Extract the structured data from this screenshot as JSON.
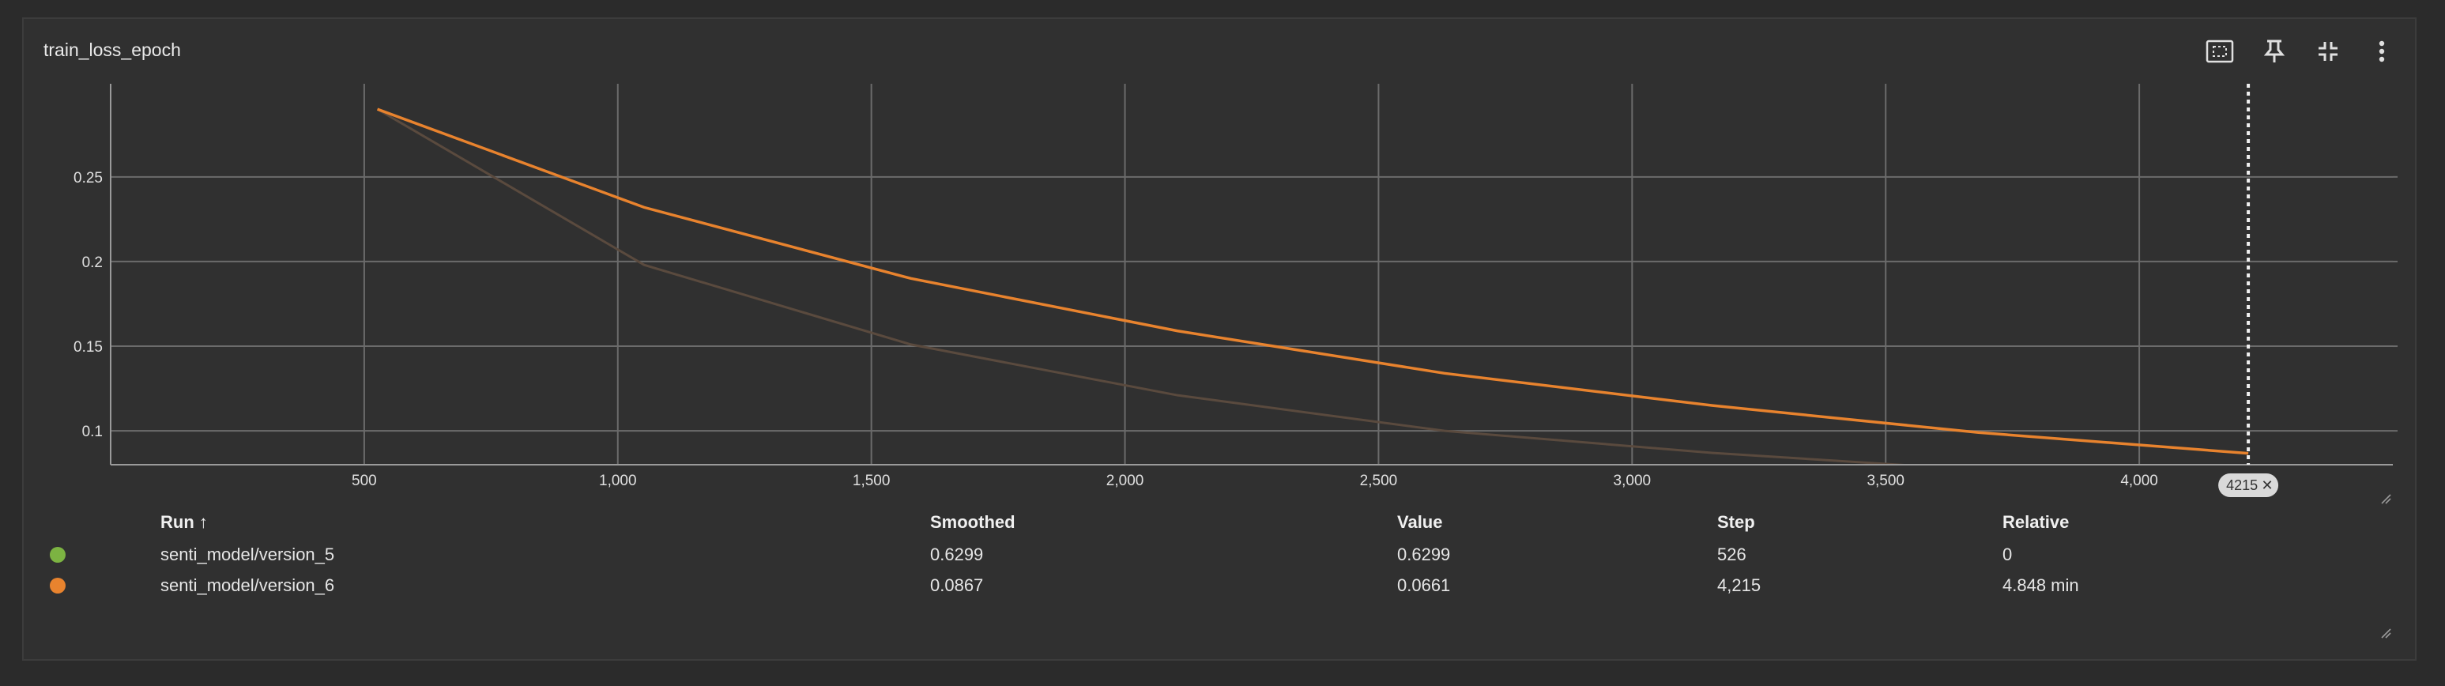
{
  "card": {
    "title": "train_loss_epoch"
  },
  "toolbar": {
    "icons": [
      "fit-to-data-icon",
      "pin-icon",
      "collapse-icon",
      "more-vert-icon"
    ]
  },
  "chart_data": {
    "type": "line",
    "title": "train_loss_epoch",
    "xlabel": "",
    "ylabel": "",
    "xlim": [
      0,
      4500
    ],
    "ylim": [
      0.08,
      0.305
    ],
    "x_ticks": [
      "500",
      "1,000",
      "1,500",
      "2,000",
      "2,500",
      "3,000",
      "3,500",
      "4,000"
    ],
    "x_tick_values": [
      500,
      1000,
      1500,
      2000,
      2500,
      3000,
      3500,
      4000
    ],
    "y_ticks": [
      "0.1",
      "0.15",
      "0.2",
      "0.25"
    ],
    "y_tick_values": [
      0.1,
      0.15,
      0.2,
      0.25
    ],
    "grid": true,
    "hover_step": 4215,
    "hover_label": "4215",
    "series": [
      {
        "name": "senti_model/version_6",
        "color": "#e8832e",
        "role": "smoothed",
        "x": [
          526,
          1052,
          1578,
          2104,
          2630,
          3157,
          3683,
          4215
        ],
        "y": [
          0.29,
          0.232,
          0.19,
          0.159,
          0.134,
          0.115,
          0.099,
          0.0867
        ]
      },
      {
        "name": "senti_model/version_6",
        "color": "#5a4a3e",
        "role": "raw",
        "x": [
          526,
          1052,
          1578,
          2104,
          2630,
          3157,
          3683,
          4215
        ],
        "y": [
          0.29,
          0.198,
          0.151,
          0.121,
          0.1,
          0.087,
          0.077,
          0.0661
        ]
      }
    ]
  },
  "table": {
    "headers": {
      "run": "Run ↑",
      "smoothed": "Smoothed",
      "value": "Value",
      "step": "Step",
      "relative": "Relative"
    },
    "rows": [
      {
        "color": "#7cb342",
        "run": "senti_model/version_5",
        "smoothed": "0.6299",
        "value": "0.6299",
        "step": "526",
        "relative": "0"
      },
      {
        "color": "#e8832e",
        "run": "senti_model/version_6",
        "smoothed": "0.0867",
        "value": "0.0661",
        "step": "4,215",
        "relative": "4.848 min"
      }
    ]
  }
}
